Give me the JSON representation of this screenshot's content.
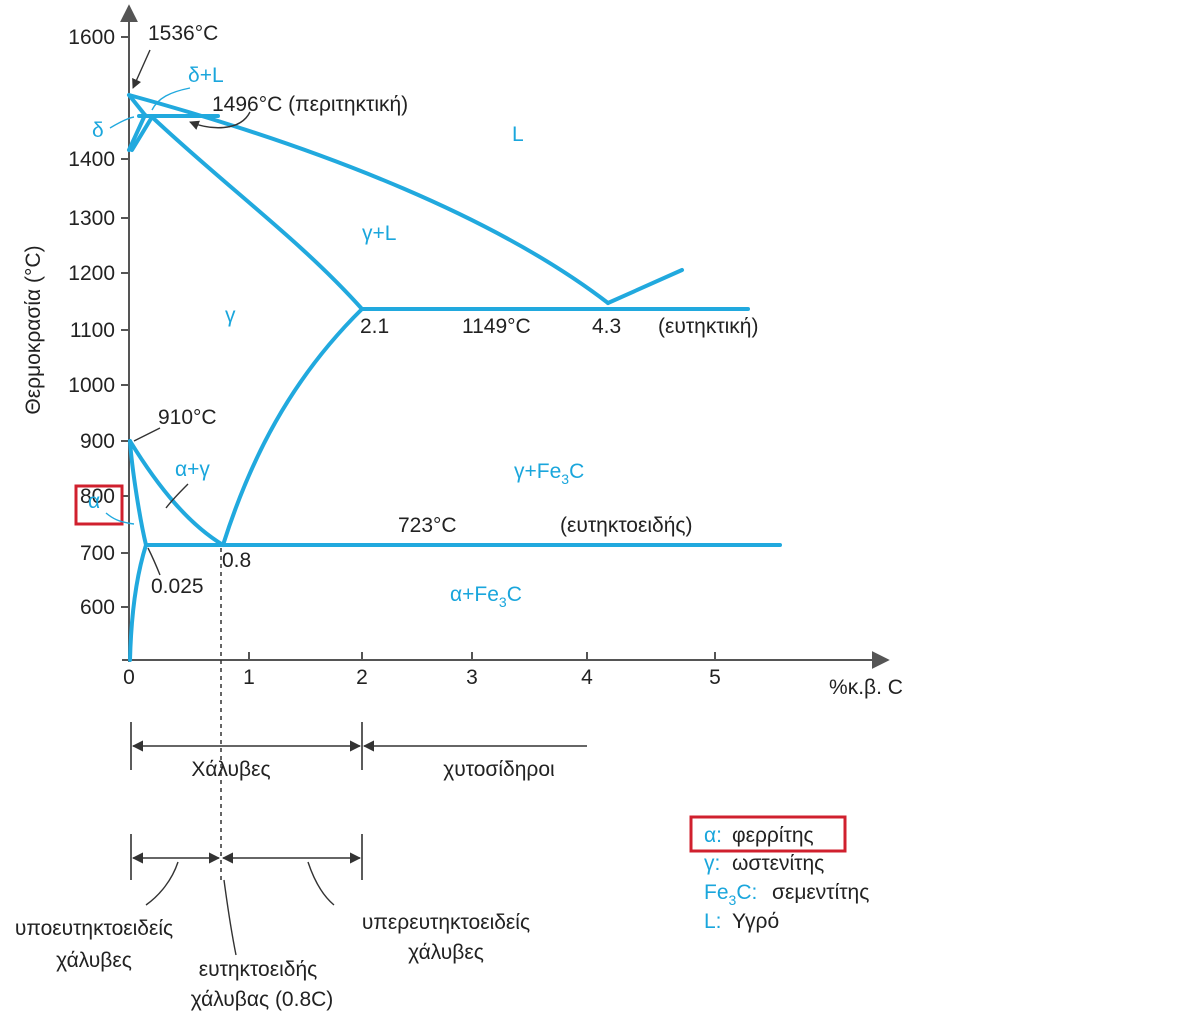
{
  "axes": {
    "y_label": "Θερμοκρασία (°C)",
    "x_label": "%κ.β. C",
    "y_ticks": [
      "600",
      "700",
      "800",
      "900",
      "1000",
      "1100",
      "1200",
      "1300",
      "1400",
      "1600"
    ],
    "x_ticks": [
      "0",
      "1",
      "2",
      "3",
      "4",
      "5"
    ]
  },
  "annotations": {
    "t1536": "1536°C",
    "t1496": "1496°C (περιτηκτική)",
    "t910": "910°C",
    "t1149": "1149°C",
    "eutectic": "(ευτηκτική)",
    "t723": "723°C",
    "eutectoid": "(ευτηκτοειδής)",
    "c21": "2.1",
    "c43": "4.3",
    "c08": "0.8",
    "c0025": "0.025"
  },
  "phases": {
    "delta_l": "δ+L",
    "delta": "δ",
    "liquid": "L",
    "gamma_l": "γ+L",
    "gamma": "γ",
    "alpha_gamma": "α+γ",
    "alpha": "α",
    "gamma_fe3c": "γ+Fe3C",
    "alpha_fe3c": "α+Fe3C"
  },
  "ranges": {
    "steels": "Χάλυβες",
    "cast_irons": "χυτοσίδηροι",
    "hypoeutectoid_1": "υποευτηκτοειδείς",
    "hypoeutectoid_2": "χάλυβες",
    "eutectoid_steel_1": "ευτηκτοειδής",
    "eutectoid_steel_2": "χάλυβας (0.8C)",
    "hypereutectoid_1": "υπερευτηκτοειδείς",
    "hypereutectoid_2": "χάλυβες"
  },
  "legend": [
    {
      "symbol": "α:",
      "text": "φερρίτης"
    },
    {
      "symbol": "γ:",
      "text": "ωστενίτης"
    },
    {
      "symbol": "Fe3C:",
      "text": "σεμεντίτης"
    },
    {
      "symbol": "L:",
      "text": "Υγρό"
    }
  ],
  "colors": {
    "phase_lines": "#21a9de",
    "highlight": "#d0202e",
    "text": "#222222"
  }
}
